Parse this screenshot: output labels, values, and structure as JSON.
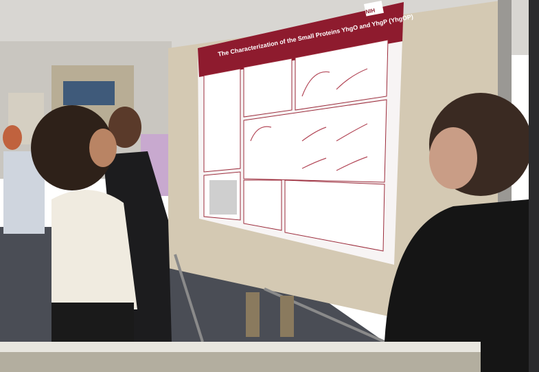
{
  "poster": {
    "title": "The Characterization of the Small Proteins YhgO and YhgP (YhgOP)",
    "logo": "NIH"
  }
}
